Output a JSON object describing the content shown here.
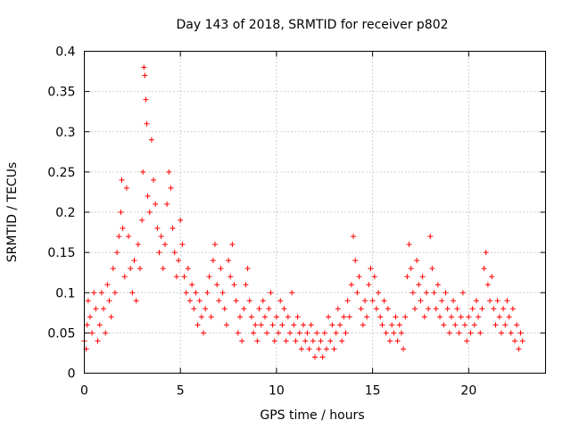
{
  "chart_data": {
    "type": "scatter",
    "title": "Day 143 of 2018, SRMTID for receiver p802",
    "xlabel": "GPS time / hours",
    "ylabel": "SRMTID / TECUs",
    "xlim": [
      0,
      24
    ],
    "ylim": [
      0,
      0.4
    ],
    "x_ticks": [
      "0",
      "5",
      "10",
      "15",
      "20"
    ],
    "y_ticks": [
      "0",
      "0.05",
      "0.1",
      "0.15",
      "0.2",
      "0.25",
      "0.3",
      "0.35",
      "0.4"
    ],
    "grid": true,
    "marker": "+",
    "color": "#ff0000",
    "series": [
      {
        "name": "SRMTID",
        "points": [
          [
            0.0,
            0.04
          ],
          [
            0.1,
            0.03
          ],
          [
            0.15,
            0.06
          ],
          [
            0.2,
            0.09
          ],
          [
            0.3,
            0.07
          ],
          [
            0.4,
            0.05
          ],
          [
            0.5,
            0.1
          ],
          [
            0.6,
            0.08
          ],
          [
            0.7,
            0.04
          ],
          [
            0.8,
            0.06
          ],
          [
            0.9,
            0.1
          ],
          [
            1.0,
            0.08
          ],
          [
            1.1,
            0.05
          ],
          [
            1.2,
            0.11
          ],
          [
            1.3,
            0.09
          ],
          [
            1.4,
            0.07
          ],
          [
            1.5,
            0.13
          ],
          [
            1.6,
            0.1
          ],
          [
            1.7,
            0.15
          ],
          [
            1.8,
            0.17
          ],
          [
            1.9,
            0.2
          ],
          [
            1.95,
            0.24
          ],
          [
            2.0,
            0.18
          ],
          [
            2.1,
            0.12
          ],
          [
            2.2,
            0.23
          ],
          [
            2.3,
            0.17
          ],
          [
            2.4,
            0.13
          ],
          [
            2.5,
            0.1
          ],
          [
            2.6,
            0.14
          ],
          [
            2.7,
            0.09
          ],
          [
            2.8,
            0.16
          ],
          [
            2.9,
            0.13
          ],
          [
            3.0,
            0.19
          ],
          [
            3.05,
            0.25
          ],
          [
            3.1,
            0.38
          ],
          [
            3.15,
            0.37
          ],
          [
            3.2,
            0.34
          ],
          [
            3.25,
            0.31
          ],
          [
            3.3,
            0.22
          ],
          [
            3.4,
            0.2
          ],
          [
            3.5,
            0.29
          ],
          [
            3.6,
            0.24
          ],
          [
            3.7,
            0.21
          ],
          [
            3.8,
            0.18
          ],
          [
            3.9,
            0.15
          ],
          [
            4.0,
            0.17
          ],
          [
            4.1,
            0.13
          ],
          [
            4.2,
            0.16
          ],
          [
            4.3,
            0.21
          ],
          [
            4.4,
            0.25
          ],
          [
            4.5,
            0.23
          ],
          [
            4.6,
            0.18
          ],
          [
            4.7,
            0.15
          ],
          [
            4.8,
            0.12
          ],
          [
            4.9,
            0.14
          ],
          [
            5.0,
            0.19
          ],
          [
            5.1,
            0.16
          ],
          [
            5.2,
            0.12
          ],
          [
            5.3,
            0.1
          ],
          [
            5.4,
            0.13
          ],
          [
            5.5,
            0.09
          ],
          [
            5.6,
            0.11
          ],
          [
            5.7,
            0.08
          ],
          [
            5.8,
            0.1
          ],
          [
            5.9,
            0.06
          ],
          [
            6.0,
            0.09
          ],
          [
            6.1,
            0.07
          ],
          [
            6.2,
            0.05
          ],
          [
            6.3,
            0.08
          ],
          [
            6.4,
            0.1
          ],
          [
            6.5,
            0.12
          ],
          [
            6.6,
            0.07
          ],
          [
            6.7,
            0.14
          ],
          [
            6.8,
            0.16
          ],
          [
            6.9,
            0.11
          ],
          [
            7.0,
            0.09
          ],
          [
            7.1,
            0.13
          ],
          [
            7.2,
            0.1
          ],
          [
            7.3,
            0.08
          ],
          [
            7.4,
            0.06
          ],
          [
            7.5,
            0.14
          ],
          [
            7.6,
            0.12
          ],
          [
            7.7,
            0.16
          ],
          [
            7.8,
            0.11
          ],
          [
            7.9,
            0.09
          ],
          [
            8.0,
            0.05
          ],
          [
            8.1,
            0.07
          ],
          [
            8.2,
            0.04
          ],
          [
            8.3,
            0.08
          ],
          [
            8.4,
            0.11
          ],
          [
            8.5,
            0.13
          ],
          [
            8.6,
            0.09
          ],
          [
            8.7,
            0.07
          ],
          [
            8.8,
            0.05
          ],
          [
            8.9,
            0.06
          ],
          [
            9.0,
            0.04
          ],
          [
            9.1,
            0.08
          ],
          [
            9.2,
            0.06
          ],
          [
            9.3,
            0.09
          ],
          [
            9.4,
            0.07
          ],
          [
            9.5,
            0.05
          ],
          [
            9.6,
            0.08
          ],
          [
            9.7,
            0.1
          ],
          [
            9.8,
            0.06
          ],
          [
            9.9,
            0.04
          ],
          [
            10.0,
            0.07
          ],
          [
            10.1,
            0.05
          ],
          [
            10.2,
            0.09
          ],
          [
            10.3,
            0.06
          ],
          [
            10.4,
            0.08
          ],
          [
            10.5,
            0.04
          ],
          [
            10.6,
            0.07
          ],
          [
            10.7,
            0.05
          ],
          [
            10.8,
            0.1
          ],
          [
            10.9,
            0.06
          ],
          [
            11.0,
            0.04
          ],
          [
            11.1,
            0.07
          ],
          [
            11.2,
            0.05
          ],
          [
            11.3,
            0.03
          ],
          [
            11.4,
            0.06
          ],
          [
            11.5,
            0.04
          ],
          [
            11.6,
            0.05
          ],
          [
            11.7,
            0.03
          ],
          [
            11.8,
            0.06
          ],
          [
            11.9,
            0.04
          ],
          [
            12.0,
            0.02
          ],
          [
            12.1,
            0.05
          ],
          [
            12.2,
            0.03
          ],
          [
            12.3,
            0.04
          ],
          [
            12.4,
            0.02
          ],
          [
            12.5,
            0.05
          ],
          [
            12.6,
            0.03
          ],
          [
            12.7,
            0.07
          ],
          [
            12.8,
            0.04
          ],
          [
            12.9,
            0.06
          ],
          [
            13.0,
            0.03
          ],
          [
            13.1,
            0.05
          ],
          [
            13.2,
            0.08
          ],
          [
            13.3,
            0.06
          ],
          [
            13.4,
            0.04
          ],
          [
            13.5,
            0.07
          ],
          [
            13.6,
            0.05
          ],
          [
            13.7,
            0.09
          ],
          [
            13.8,
            0.07
          ],
          [
            13.9,
            0.11
          ],
          [
            14.0,
            0.17
          ],
          [
            14.1,
            0.14
          ],
          [
            14.2,
            0.1
          ],
          [
            14.3,
            0.12
          ],
          [
            14.4,
            0.08
          ],
          [
            14.5,
            0.06
          ],
          [
            14.6,
            0.09
          ],
          [
            14.7,
            0.07
          ],
          [
            14.8,
            0.11
          ],
          [
            14.9,
            0.13
          ],
          [
            15.0,
            0.09
          ],
          [
            15.1,
            0.12
          ],
          [
            15.2,
            0.08
          ],
          [
            15.3,
            0.1
          ],
          [
            15.4,
            0.07
          ],
          [
            15.5,
            0.06
          ],
          [
            15.6,
            0.09
          ],
          [
            15.7,
            0.05
          ],
          [
            15.8,
            0.08
          ],
          [
            15.9,
            0.04
          ],
          [
            16.0,
            0.06
          ],
          [
            16.1,
            0.05
          ],
          [
            16.2,
            0.07
          ],
          [
            16.3,
            0.04
          ],
          [
            16.4,
            0.06
          ],
          [
            16.5,
            0.05
          ],
          [
            16.6,
            0.03
          ],
          [
            16.7,
            0.07
          ],
          [
            16.8,
            0.12
          ],
          [
            16.9,
            0.16
          ],
          [
            17.0,
            0.13
          ],
          [
            17.1,
            0.1
          ],
          [
            17.2,
            0.08
          ],
          [
            17.3,
            0.14
          ],
          [
            17.4,
            0.11
          ],
          [
            17.5,
            0.09
          ],
          [
            17.6,
            0.12
          ],
          [
            17.7,
            0.07
          ],
          [
            17.8,
            0.1
          ],
          [
            17.9,
            0.08
          ],
          [
            18.0,
            0.17
          ],
          [
            18.1,
            0.13
          ],
          [
            18.2,
            0.1
          ],
          [
            18.3,
            0.08
          ],
          [
            18.4,
            0.11
          ],
          [
            18.5,
            0.07
          ],
          [
            18.6,
            0.09
          ],
          [
            18.7,
            0.06
          ],
          [
            18.8,
            0.1
          ],
          [
            18.9,
            0.08
          ],
          [
            19.0,
            0.05
          ],
          [
            19.1,
            0.07
          ],
          [
            19.2,
            0.09
          ],
          [
            19.3,
            0.06
          ],
          [
            19.4,
            0.08
          ],
          [
            19.5,
            0.05
          ],
          [
            19.6,
            0.07
          ],
          [
            19.7,
            0.1
          ],
          [
            19.8,
            0.06
          ],
          [
            19.9,
            0.04
          ],
          [
            20.0,
            0.07
          ],
          [
            20.1,
            0.05
          ],
          [
            20.2,
            0.08
          ],
          [
            20.3,
            0.06
          ],
          [
            20.4,
            0.09
          ],
          [
            20.5,
            0.07
          ],
          [
            20.6,
            0.05
          ],
          [
            20.7,
            0.08
          ],
          [
            20.8,
            0.13
          ],
          [
            20.9,
            0.15
          ],
          [
            21.0,
            0.11
          ],
          [
            21.1,
            0.09
          ],
          [
            21.2,
            0.12
          ],
          [
            21.3,
            0.08
          ],
          [
            21.4,
            0.06
          ],
          [
            21.5,
            0.09
          ],
          [
            21.6,
            0.07
          ],
          [
            21.7,
            0.05
          ],
          [
            21.8,
            0.08
          ],
          [
            21.9,
            0.06
          ],
          [
            22.0,
            0.09
          ],
          [
            22.1,
            0.07
          ],
          [
            22.2,
            0.05
          ],
          [
            22.3,
            0.08
          ],
          [
            22.4,
            0.04
          ],
          [
            22.5,
            0.06
          ],
          [
            22.6,
            0.03
          ],
          [
            22.7,
            0.05
          ],
          [
            22.8,
            0.04
          ]
        ]
      }
    ]
  }
}
